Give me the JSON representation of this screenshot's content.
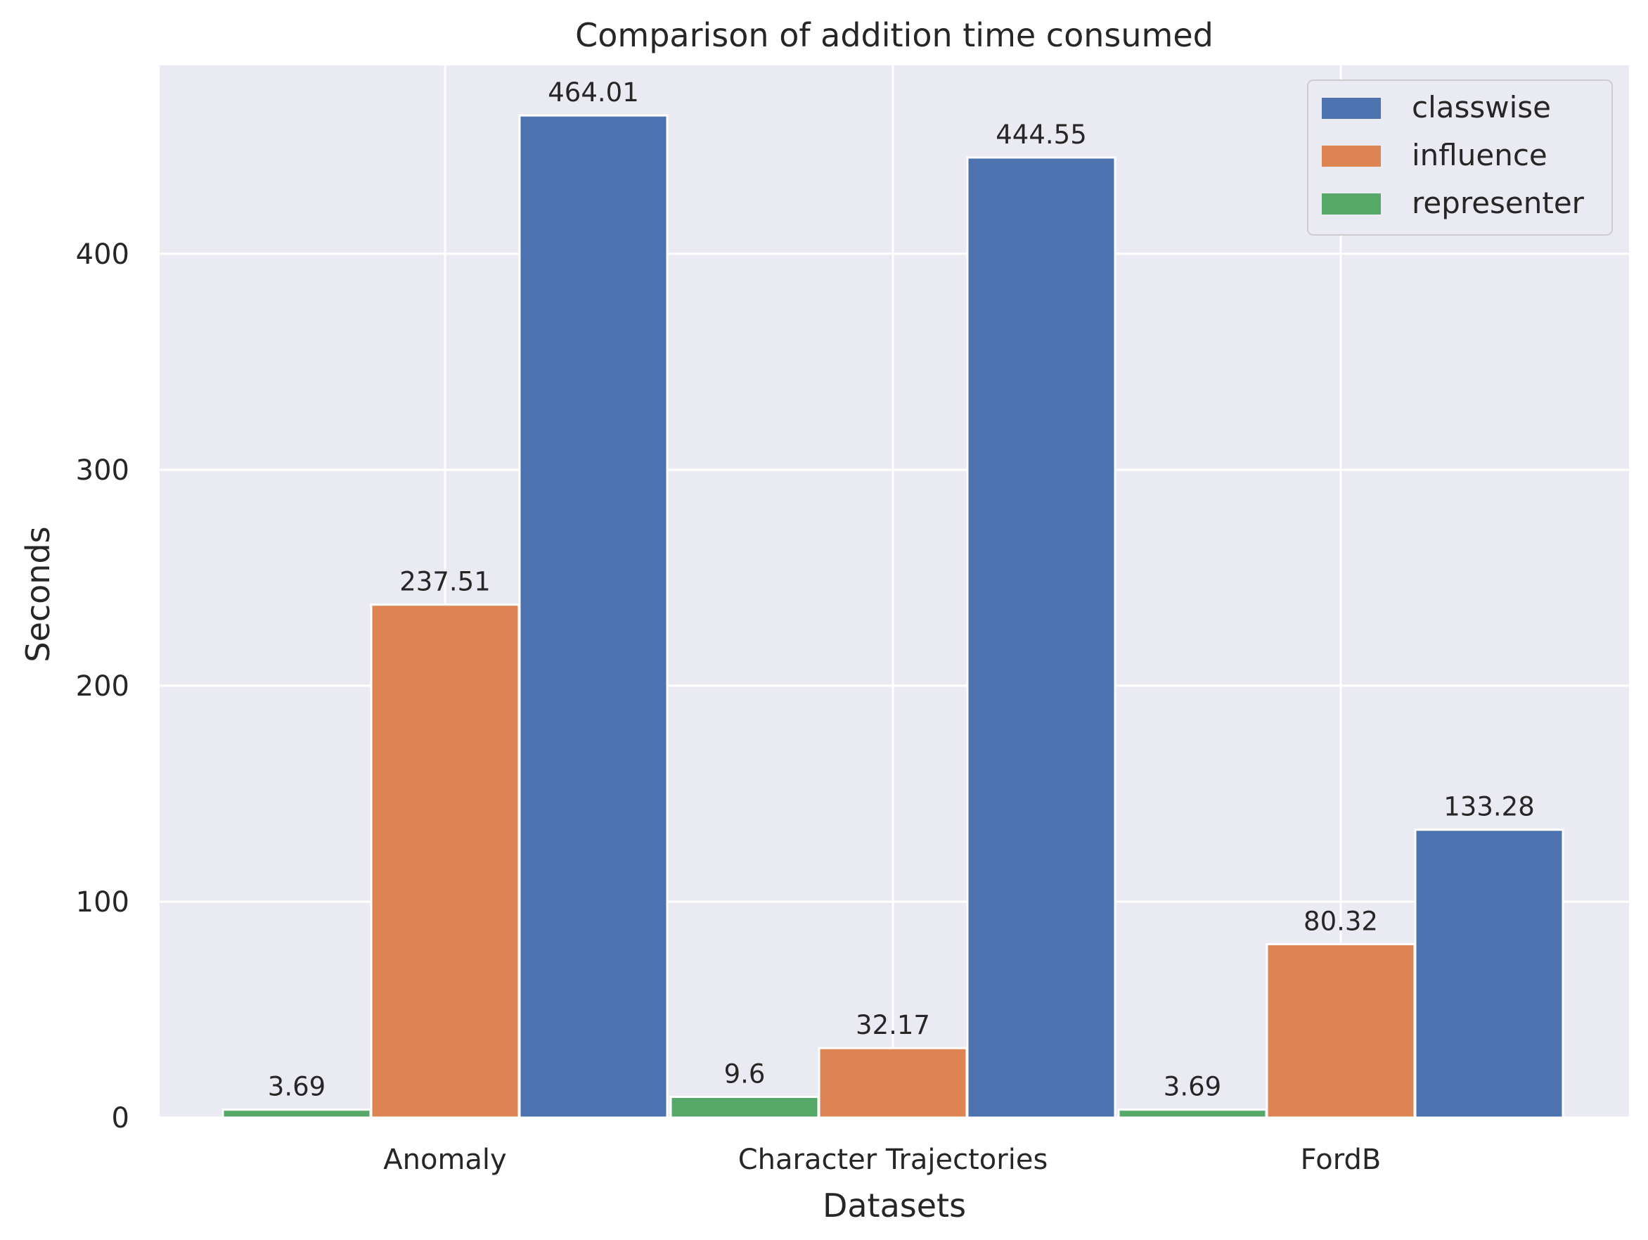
{
  "chart_data": {
    "type": "bar",
    "title": "Comparison of addition time consumed",
    "xlabel": "Datasets",
    "ylabel": "Seconds",
    "categories": [
      "Anomaly",
      "Character Trajectories",
      "FordB"
    ],
    "series": [
      {
        "name": "representer",
        "color": "#55a868",
        "values": [
          3.69,
          9.6,
          3.69
        ],
        "labels": [
          "3.69",
          "9.6",
          "3.69"
        ]
      },
      {
        "name": "influence",
        "color": "#dd8452",
        "values": [
          237.51,
          32.17,
          80.32
        ],
        "labels": [
          "237.51",
          "32.17",
          "80.32"
        ]
      },
      {
        "name": "classwise",
        "color": "#4c72b0",
        "values": [
          464.01,
          444.55,
          133.28
        ],
        "labels": [
          "464.01",
          "444.55",
          "133.28"
        ]
      }
    ],
    "legend_order": [
      "classwise",
      "influence",
      "representer"
    ],
    "ylim": [
      0,
      487.2
    ],
    "yticks": [
      0,
      100,
      200,
      300,
      400
    ],
    "grid": true,
    "legend_position": "top-right",
    "background": "#eaeaf2"
  }
}
